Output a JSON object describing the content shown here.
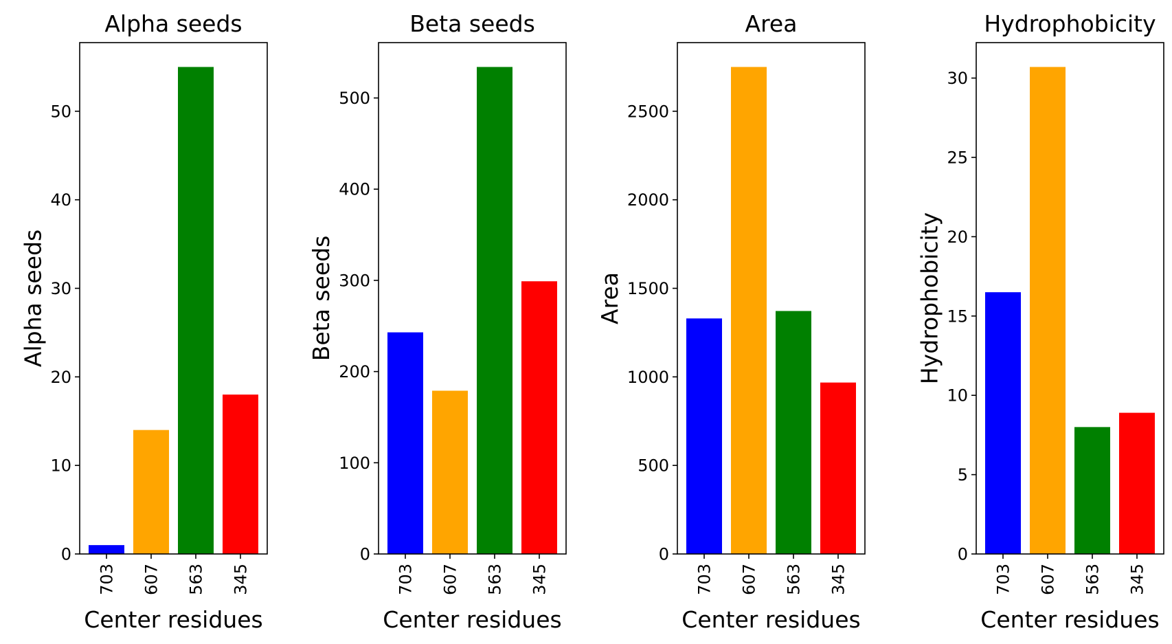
{
  "chart_data": [
    {
      "type": "bar",
      "title": "Alpha seeds",
      "xlabel": "Center residues",
      "ylabel": "Alpha seeds",
      "categories": [
        "703",
        "607",
        "563",
        "345"
      ],
      "values": [
        1,
        14,
        55,
        18
      ],
      "colors": [
        "#0000ff",
        "#ffa500",
        "#008000",
        "#ff0000"
      ],
      "ylim": [
        0,
        57.75
      ],
      "yticks": [
        0,
        10,
        20,
        30,
        40,
        50
      ],
      "grid": false
    },
    {
      "type": "bar",
      "title": "Beta seeds",
      "xlabel": "Center residues",
      "ylabel": "Beta seeds",
      "categories": [
        "703",
        "607",
        "563",
        "345"
      ],
      "values": [
        243,
        179,
        534,
        299
      ],
      "colors": [
        "#0000ff",
        "#ffa500",
        "#008000",
        "#ff0000"
      ],
      "ylim": [
        0,
        560.7
      ],
      "yticks": [
        0,
        100,
        200,
        300,
        400,
        500
      ],
      "grid": false
    },
    {
      "type": "bar",
      "title": "Area",
      "xlabel": "Center residues",
      "ylabel": "Area",
      "categories": [
        "703",
        "607",
        "563",
        "345"
      ],
      "values": [
        1330,
        2750,
        1372,
        968
      ],
      "colors": [
        "#0000ff",
        "#ffa500",
        "#008000",
        "#ff0000"
      ],
      "ylim": [
        0,
        2887.5
      ],
      "yticks": [
        0,
        500,
        1000,
        1500,
        2000,
        2500
      ],
      "grid": false
    },
    {
      "type": "bar",
      "title": "Hydrophobicity",
      "xlabel": "Center residues",
      "ylabel": "Hydrophobicity",
      "categories": [
        "703",
        "607",
        "563",
        "345"
      ],
      "values": [
        16.5,
        30.7,
        8.0,
        8.9
      ],
      "colors": [
        "#0000ff",
        "#ffa500",
        "#008000",
        "#ff0000"
      ],
      "ylim": [
        0,
        32.235
      ],
      "yticks": [
        0,
        5,
        10,
        15,
        20,
        25,
        30
      ],
      "grid": false
    }
  ]
}
